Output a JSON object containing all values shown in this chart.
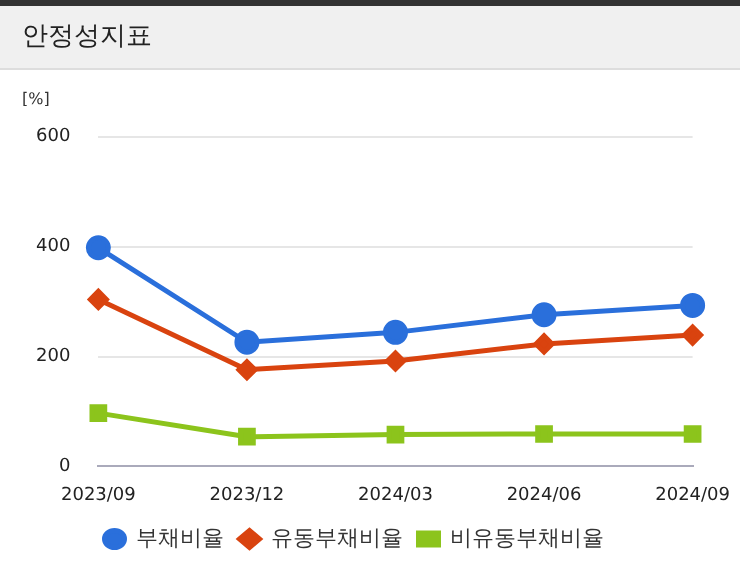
{
  "chart_data": {
    "type": "line",
    "title": "안정성지표",
    "ylabel": "[%]",
    "categories": [
      "2023/09",
      "2023/12",
      "2024/03",
      "2024/06",
      "2024/09"
    ],
    "series": [
      {
        "name": "부채비율",
        "color": "#2a6fdb",
        "marker": "circle",
        "values": [
          398,
          226,
          244,
          276,
          293
        ]
      },
      {
        "name": "유동부채비율",
        "color": "#d9430f",
        "marker": "diamond",
        "values": [
          304,
          176,
          192,
          223,
          239
        ]
      },
      {
        "name": "비유동부채비율",
        "color": "#8cc41c",
        "marker": "square",
        "values": [
          97,
          54,
          58,
          59,
          59
        ]
      }
    ],
    "ylim": [
      0,
      600
    ],
    "yticks": [
      0,
      200,
      400,
      600
    ],
    "grid": "y",
    "legend": "bottom"
  }
}
